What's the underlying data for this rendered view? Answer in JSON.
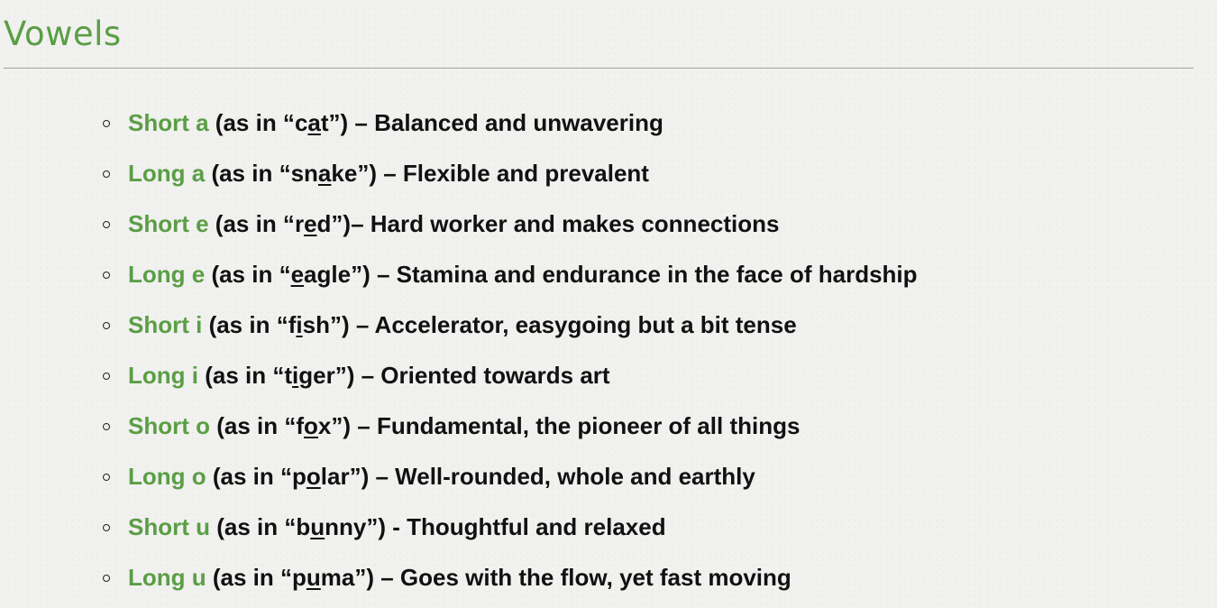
{
  "heading": "Vowels",
  "items": [
    {
      "name": "Short a",
      "lead": " (as in “",
      "pre": "c",
      "mark": "a",
      "post": "t",
      "rest": "”) – Balanced and unwavering"
    },
    {
      "name": "Long a",
      "lead": " (as in “",
      "pre": "sn",
      "mark": "a",
      "post": "ke",
      "rest": "”) – Flexible and prevalent"
    },
    {
      "name": "Short e",
      "lead": " (as in “",
      "pre": "r",
      "mark": "e",
      "post": "d",
      "rest": "”)– Hard worker and makes connections"
    },
    {
      "name": "Long e",
      "lead": " (as in “",
      "pre": "",
      "mark": "e",
      "post": "agle",
      "rest": "”) – Stamina and endurance in the face of hardship"
    },
    {
      "name": "Short i",
      "lead": " (as in “",
      "pre": "f",
      "mark": "i",
      "post": "sh",
      "rest": "”) – Accelerator, easygoing but a bit tense"
    },
    {
      "name": "Long i",
      "lead": " (as in “",
      "pre": "t",
      "mark": "i",
      "post": "ger",
      "rest": "”) – Oriented towards art"
    },
    {
      "name": "Short o",
      "lead": " (as in “",
      "pre": "f",
      "mark": "o",
      "post": "x",
      "rest": "”) – Fundamental, the pioneer of all things"
    },
    {
      "name": "Long o",
      "lead": " (as in “",
      "pre": "p",
      "mark": "o",
      "post": "lar",
      "rest": "”) – Well-rounded, whole and earthly"
    },
    {
      "name": "Short u",
      "lead": " (as in “",
      "pre": "b",
      "mark": "u",
      "post": "nny",
      "rest": "”) - Thoughtful and relaxed"
    },
    {
      "name": "Long u",
      "lead": " (as in “",
      "pre": "p",
      "mark": "u",
      "post": "ma",
      "rest": "”) – Goes with the flow, yet fast moving"
    }
  ]
}
